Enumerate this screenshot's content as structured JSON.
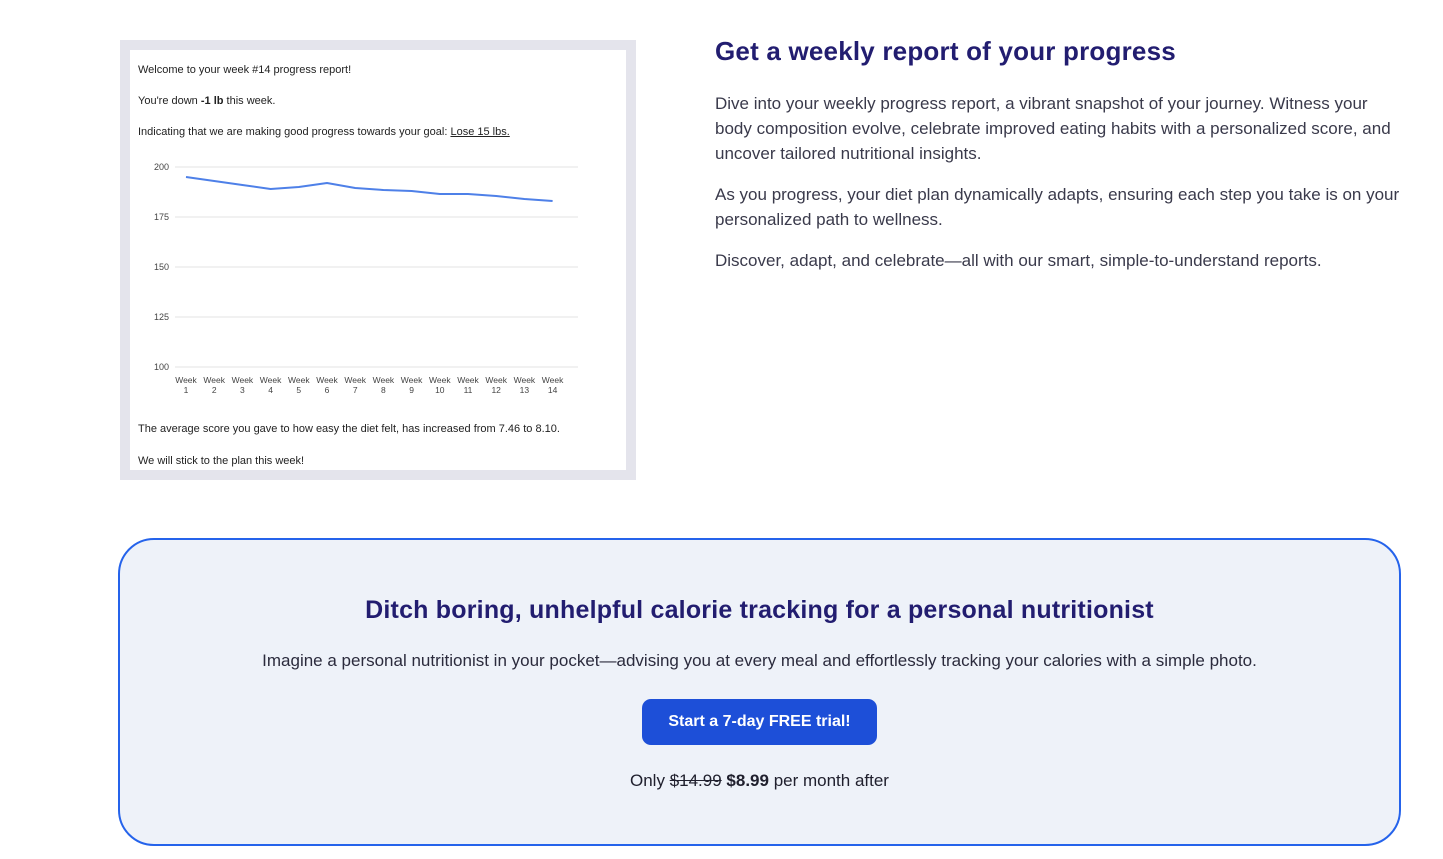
{
  "report": {
    "lines": {
      "welcome": "Welcome to your week #14 progress report!",
      "down_prefix": "You're down ",
      "down_bold": "-1 lb",
      "down_suffix": " this week.",
      "goal_prefix": "Indicating that we are making good progress towards your goal: ",
      "goal_link": "Lose 15 lbs.",
      "score": "The average score you gave to how easy the diet felt, has increased from 7.46 to 8.10.",
      "closing": "We will stick to the plan this week!"
    }
  },
  "chart_data": {
    "type": "line",
    "title": "",
    "xlabel": "",
    "ylabel": "",
    "categories": [
      "Week 1",
      "Week 2",
      "Week 3",
      "Week 4",
      "Week 5",
      "Week 6",
      "Week 7",
      "Week 8",
      "Week 9",
      "Week 10",
      "Week 11",
      "Week 12",
      "Week 13",
      "Week 14"
    ],
    "values": [
      195,
      193,
      191,
      189,
      190,
      192,
      189.5,
      188.5,
      188,
      186.5,
      186.5,
      185.5,
      184,
      183
    ],
    "ylim": [
      100,
      200
    ],
    "yticks": [
      200,
      175,
      150,
      125,
      100
    ],
    "grid": true,
    "legend": "none",
    "line_color": "#4e80e8",
    "grid_color": "#e3e3e3",
    "tick_color": "#444444"
  },
  "right_section": {
    "title": "Get a weekly report of your progress",
    "paragraphs": [
      "Dive into your weekly progress report, a vibrant snapshot of your journey. Witness your body composition evolve, celebrate improved eating habits with a personalized score, and uncover tailored nutritional insights.",
      "As you progress, your diet plan dynamically adapts, ensuring each step you take is on your personalized path to wellness.",
      "Discover, adapt, and celebrate—all with our smart, simple-to-understand reports."
    ]
  },
  "cta_card": {
    "title": "Ditch boring, unhelpful calorie tracking for a personal nutritionist",
    "subtitle": "Imagine a personal nutritionist in your pocket—advising you at every meal and effortlessly tracking your calories with a simple photo.",
    "button_label": "Start a 7-day FREE trial!",
    "pricing": {
      "prefix": "Only ",
      "old_price": "$14.99",
      "new_price": "$8.99",
      "suffix": " per month after"
    }
  },
  "colors": {
    "accent_blue": "#1d4fd8",
    "card_border": "#2563eb",
    "card_background": "#eef2f9",
    "heading_navy": "#221d70",
    "report_frame": "#e4e4ec"
  }
}
